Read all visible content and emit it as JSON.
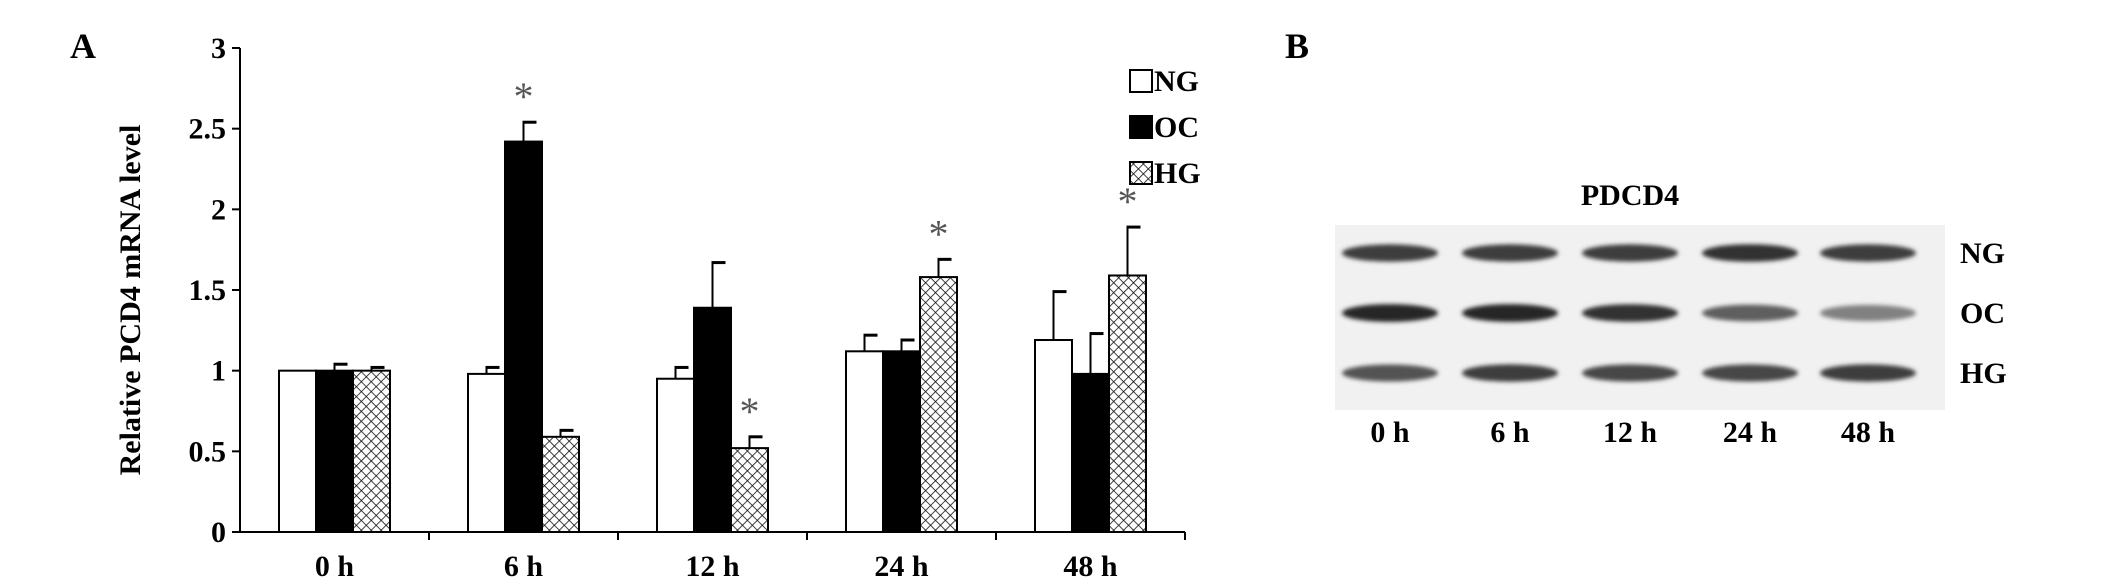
{
  "panels": {
    "left_letter": "A",
    "right_letter": "B"
  },
  "chart_data": {
    "type": "bar",
    "ylabel": "Relative PCD4 mRNA level",
    "ylim": [
      0,
      3
    ],
    "yticks": [
      "0",
      "0.5",
      "1",
      "1.5",
      "2",
      "2.5",
      "3"
    ],
    "categories": [
      "0 h",
      "6 h",
      "12 h",
      "24 h",
      "48 h"
    ],
    "series": [
      {
        "name": "NG",
        "values": [
          1.0,
          0.98,
          0.95,
          1.12,
          1.19
        ],
        "errors": [
          0.0,
          0.04,
          0.07,
          0.1,
          0.3
        ],
        "fill": "white"
      },
      {
        "name": "OC",
        "values": [
          1.0,
          2.42,
          1.39,
          1.12,
          0.98
        ],
        "errors": [
          0.04,
          0.12,
          0.28,
          0.07,
          0.25
        ],
        "fill": "black"
      },
      {
        "name": "HG",
        "values": [
          1.0,
          0.59,
          0.52,
          1.58,
          1.59
        ],
        "errors": [
          0.02,
          0.04,
          0.07,
          0.11,
          0.3
        ],
        "fill": "crosshatch"
      }
    ],
    "significance": [
      {
        "category": "6 h",
        "series": "OC",
        "mark": "*"
      },
      {
        "category": "12 h",
        "series": "HG",
        "mark": "*"
      },
      {
        "category": "24 h",
        "series": "HG",
        "mark": "*"
      },
      {
        "category": "48 h",
        "series": "HG",
        "mark": "*"
      }
    ],
    "legend_position": "top-right",
    "grid": false
  },
  "blot": {
    "title": "PDCD4",
    "rows": [
      {
        "label": "NG",
        "intensity": [
          0.85,
          0.85,
          0.85,
          0.9,
          0.85
        ]
      },
      {
        "label": "OC",
        "intensity": [
          0.95,
          0.95,
          0.9,
          0.7,
          0.55
        ]
      },
      {
        "label": "HG",
        "intensity": [
          0.75,
          0.85,
          0.8,
          0.8,
          0.85
        ]
      }
    ],
    "lanes": [
      "0 h",
      "6 h",
      "12 h",
      "24 h",
      "48 h"
    ]
  }
}
